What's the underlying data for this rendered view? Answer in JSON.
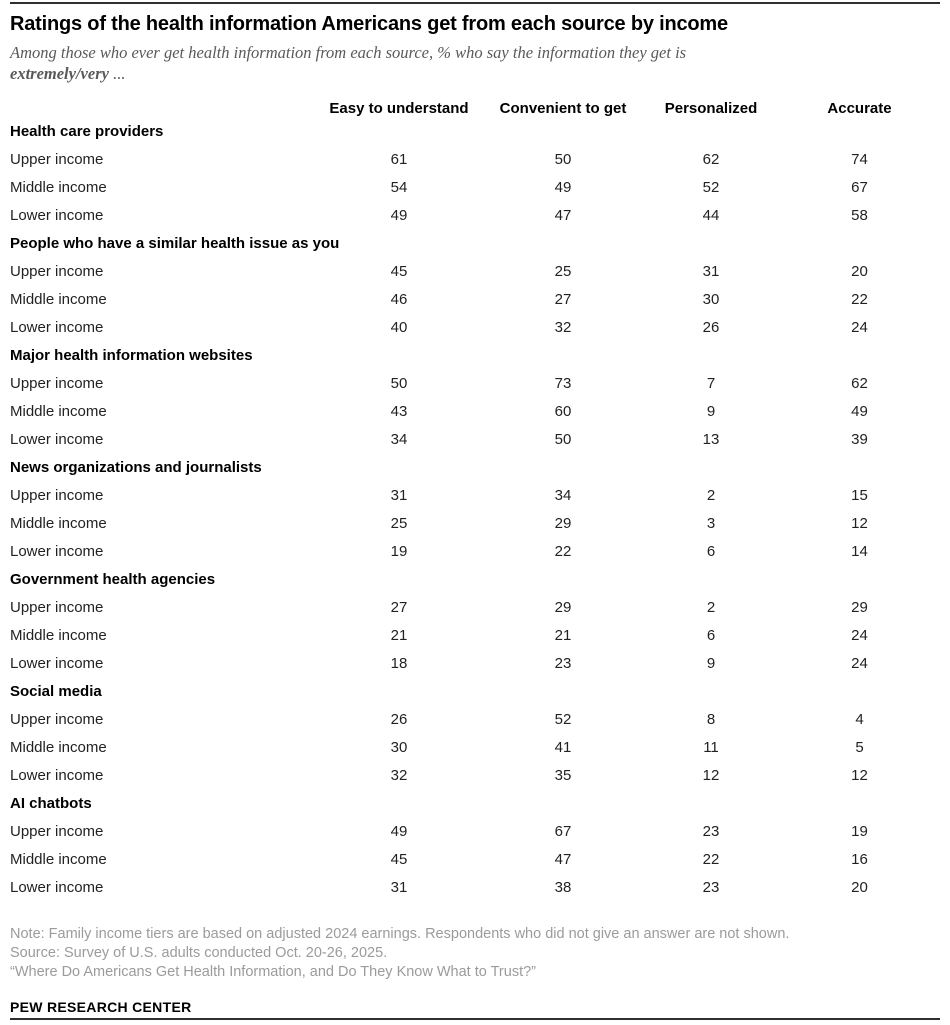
{
  "header": {
    "title": "Ratings of the health information Americans get from each source by income",
    "subtitle_line1": "Among those who ever get health information from each source, % who say the information they get is",
    "subtitle_bold": "extremely/very",
    "subtitle_rest": " ..."
  },
  "chart_data": {
    "type": "table",
    "title": "Ratings of the health information Americans get from each source by income",
    "subtitle": "Among those who ever get health information from each source, % who say the information they get is extremely/very ...",
    "unit": "percent",
    "columns": [
      "Easy to understand",
      "Convenient to get",
      "Personalized",
      "Accurate"
    ],
    "groups": [
      {
        "label": "Health care providers",
        "rows": [
          {
            "label": "Upper income",
            "values": [
              61,
              50,
              62,
              74
            ]
          },
          {
            "label": "Middle income",
            "values": [
              54,
              49,
              52,
              67
            ]
          },
          {
            "label": "Lower income",
            "values": [
              49,
              47,
              44,
              58
            ]
          }
        ]
      },
      {
        "label": "People who have a similar health issue as you",
        "rows": [
          {
            "label": "Upper income",
            "values": [
              45,
              25,
              31,
              20
            ]
          },
          {
            "label": "Middle income",
            "values": [
              46,
              27,
              30,
              22
            ]
          },
          {
            "label": "Lower income",
            "values": [
              40,
              32,
              26,
              24
            ]
          }
        ]
      },
      {
        "label": "Major health information websites",
        "rows": [
          {
            "label": "Upper income",
            "values": [
              50,
              73,
              7,
              62
            ]
          },
          {
            "label": "Middle income",
            "values": [
              43,
              60,
              9,
              49
            ]
          },
          {
            "label": "Lower income",
            "values": [
              34,
              50,
              13,
              39
            ]
          }
        ]
      },
      {
        "label": "News organizations and journalists",
        "rows": [
          {
            "label": "Upper income",
            "values": [
              31,
              34,
              2,
              15
            ]
          },
          {
            "label": "Middle income",
            "values": [
              25,
              29,
              3,
              12
            ]
          },
          {
            "label": "Lower income",
            "values": [
              19,
              22,
              6,
              14
            ]
          }
        ]
      },
      {
        "label": "Government health agencies",
        "rows": [
          {
            "label": "Upper income",
            "values": [
              27,
              29,
              2,
              29
            ]
          },
          {
            "label": "Middle income",
            "values": [
              21,
              21,
              6,
              24
            ]
          },
          {
            "label": "Lower income",
            "values": [
              18,
              23,
              9,
              24
            ]
          }
        ]
      },
      {
        "label": "Social media",
        "rows": [
          {
            "label": "Upper income",
            "values": [
              26,
              52,
              8,
              4
            ]
          },
          {
            "label": "Middle income",
            "values": [
              30,
              41,
              11,
              5
            ]
          },
          {
            "label": "Lower income",
            "values": [
              32,
              35,
              12,
              12
            ]
          }
        ]
      },
      {
        "label": "AI chatbots",
        "rows": [
          {
            "label": "Upper income",
            "values": [
              49,
              67,
              23,
              19
            ]
          },
          {
            "label": "Middle income",
            "values": [
              45,
              47,
              22,
              16
            ]
          },
          {
            "label": "Lower income",
            "values": [
              31,
              38,
              23,
              20
            ]
          }
        ]
      }
    ]
  },
  "footer": {
    "note": "Note: Family income tiers are based on adjusted 2024 earnings. Respondents who did not give an answer are not shown.",
    "source": "Source: Survey of U.S. adults conducted Oct. 20-26, 2025.",
    "report": "“Where Do Americans Get Health Information, and Do They Know What to Trust?”",
    "brand": "PEW RESEARCH CENTER"
  },
  "colors": {
    "title_text": "#000000",
    "subtitle_text": "#595959",
    "body_text": "#222222",
    "note_text": "#9b9b9b",
    "rule": "#2f2f2f",
    "background": "#ffffff"
  }
}
